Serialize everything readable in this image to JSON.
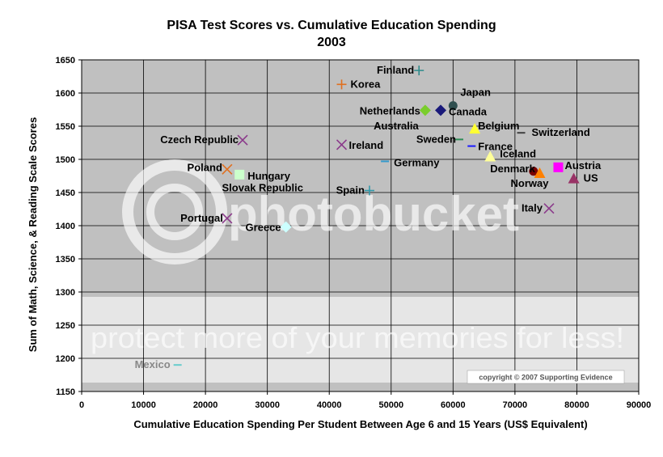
{
  "chart_data": {
    "type": "scatter",
    "title": "PISA Test Scores vs. Cumulative Education Spending",
    "subtitle": "2003",
    "xlabel": "Cumulative Education Spending Per Student Between Age 6 and 15 Years (US$ Equivalent)",
    "ylabel": "Sum of Math, Science, & Reading Scale Scores",
    "xlim": [
      0,
      90000
    ],
    "ylim": [
      1150,
      1650
    ],
    "xticks": [
      0,
      10000,
      20000,
      30000,
      40000,
      50000,
      60000,
      70000,
      80000,
      90000
    ],
    "yticks": [
      1150,
      1200,
      1250,
      1300,
      1350,
      1400,
      1450,
      1500,
      1550,
      1600,
      1650
    ],
    "grid": true,
    "legend": "none",
    "points": [
      {
        "name": "Finland",
        "x": 54500,
        "y": 1634,
        "marker": "plus",
        "color": "#2e8b8b"
      },
      {
        "name": "Korea",
        "x": 42000,
        "y": 1613,
        "marker": "plus",
        "color": "#e07020"
      },
      {
        "name": "Japan",
        "x": 60000,
        "y": 1581,
        "marker": "circle",
        "color": "#2f4f4f"
      },
      {
        "name": "Netherlands",
        "x": 55500,
        "y": 1574,
        "marker": "diamond",
        "color": "#7acd2c"
      },
      {
        "name": "Canada",
        "x": 58000,
        "y": 1574,
        "marker": "diamond",
        "color": "#1a1a7a"
      },
      {
        "name": "Australia",
        "x": 55500,
        "y": 1573,
        "marker": "none",
        "color": "#000000"
      },
      {
        "name": "Belgium",
        "x": 63500,
        "y": 1545,
        "marker": "triangle",
        "color": "#ffff33"
      },
      {
        "name": "Switzerland",
        "x": 71000,
        "y": 1540,
        "marker": "dash",
        "color": "#404040"
      },
      {
        "name": "Sweden",
        "x": 61000,
        "y": 1530,
        "marker": "dash",
        "color": "#2e8b57"
      },
      {
        "name": "Czech Republic",
        "x": 26000,
        "y": 1529,
        "marker": "x",
        "color": "#8b3a8b"
      },
      {
        "name": "Ireland",
        "x": 42000,
        "y": 1522,
        "marker": "x",
        "color": "#8b3a8b"
      },
      {
        "name": "France",
        "x": 63000,
        "y": 1520,
        "marker": "dash",
        "color": "#1a1aff"
      },
      {
        "name": "Iceland",
        "x": 66000,
        "y": 1503,
        "marker": "triangle",
        "color": "#ffff99"
      },
      {
        "name": "Germany",
        "x": 49000,
        "y": 1497,
        "marker": "dash",
        "color": "#3399cc"
      },
      {
        "name": "Austria",
        "x": 77000,
        "y": 1488,
        "marker": "square",
        "color": "#ff00ff"
      },
      {
        "name": "Poland",
        "x": 23500,
        "y": 1485,
        "marker": "x",
        "color": "#e07020"
      },
      {
        "name": "Denmark",
        "x": 73000,
        "y": 1482,
        "marker": "circle",
        "color": "#7a0000"
      },
      {
        "name": "Norway",
        "x": 74000,
        "y": 1478,
        "marker": "triangle",
        "color": "#ff8000"
      },
      {
        "name": "Hungary",
        "x": 25500,
        "y": 1477,
        "marker": "square",
        "color": "#ccffcc"
      },
      {
        "name": "US",
        "x": 79500,
        "y": 1470,
        "marker": "triangle",
        "color": "#993366"
      },
      {
        "name": "Slovak Republic",
        "x": 24000,
        "y": 1453,
        "marker": "none",
        "color": "#000000"
      },
      {
        "name": "Spain",
        "x": 46500,
        "y": 1453,
        "marker": "plus",
        "color": "#3399aa"
      },
      {
        "name": "Italy",
        "x": 75500,
        "y": 1426,
        "marker": "x",
        "color": "#8b3a8b"
      },
      {
        "name": "Portugal",
        "x": 23500,
        "y": 1411,
        "marker": "x",
        "color": "#8b3a8b"
      },
      {
        "name": "Greece",
        "x": 33000,
        "y": 1398,
        "marker": "diamond",
        "color": "#ccffff"
      },
      {
        "name": "Mexico",
        "x": 15500,
        "y": 1190,
        "marker": "dash",
        "color": "#66cccc"
      }
    ]
  },
  "watermark": {
    "brand": "photobucket",
    "tagline": "protect more of your memories for less!"
  },
  "copyright": "copyright © 2007 Supporting Evidence",
  "colors": {
    "plot_background": "#c0c0c0",
    "gridline": "#000000",
    "watermark_band": "#e6e6e6"
  }
}
